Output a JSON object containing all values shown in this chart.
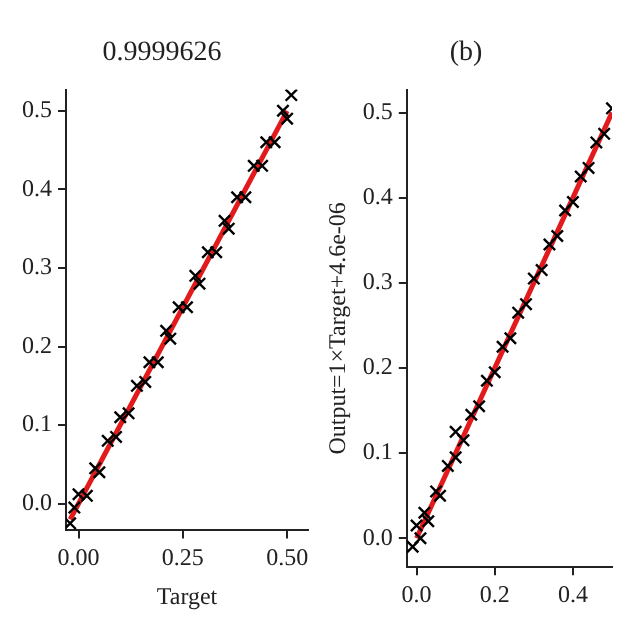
{
  "chart_data": [
    {
      "type": "scatter",
      "title": "0.9999626",
      "xlabel": "Target",
      "xlim": [
        -0.03,
        0.55
      ],
      "xticks": [
        {
          "value": 0,
          "label": "0.00"
        },
        {
          "value": 0.25,
          "label": "0.25"
        },
        {
          "value": 0.5,
          "label": "0.50"
        }
      ],
      "ylim": [
        -0.034,
        0.527
      ],
      "yticks": [
        {
          "value": 0,
          "label": "0.0"
        },
        {
          "value": 0.1,
          "label": "0.1"
        },
        {
          "value": 0.2,
          "label": "0.2"
        },
        {
          "value": 0.3,
          "label": "0.3"
        },
        {
          "value": 0.4,
          "label": "0.4"
        },
        {
          "value": 0.5,
          "label": "0.5"
        }
      ],
      "grid": false,
      "series": [
        {
          "color": "#000000",
          "marker": "cross",
          "x": [
            -0.02,
            -0.01,
            0.0,
            0.02,
            0.04,
            0.05,
            0.07,
            0.09,
            0.1,
            0.12,
            0.14,
            0.16,
            0.17,
            0.19,
            0.21,
            0.22,
            0.24,
            0.26,
            0.28,
            0.29,
            0.31,
            0.33,
            0.35,
            0.36,
            0.38,
            0.4,
            0.42,
            0.44,
            0.45,
            0.47,
            0.49,
            0.5,
            0.51
          ],
          "values": [
            -0.025,
            -0.005,
            0.012,
            0.01,
            0.045,
            0.04,
            0.08,
            0.085,
            0.11,
            0.115,
            0.15,
            0.155,
            0.18,
            0.18,
            0.22,
            0.21,
            0.25,
            0.25,
            0.29,
            0.28,
            0.32,
            0.32,
            0.36,
            0.35,
            0.39,
            0.39,
            0.43,
            0.43,
            0.46,
            0.46,
            0.5,
            0.49,
            0.52
          ]
        },
        {
          "type": "line",
          "color": "#e31a1c",
          "marker": "none",
          "x": [
            -0.02,
            0.5
          ],
          "values": [
            -0.02,
            0.5
          ]
        }
      ]
    },
    {
      "type": "scatter",
      "title": "(b)",
      "ylabel": "Output=1×Target+4.6e-06",
      "xlim": [
        -0.025,
        0.5
      ],
      "xticks": [
        {
          "value": 0,
          "label": "0.0"
        },
        {
          "value": 0.2,
          "label": "0.2"
        },
        {
          "value": 0.4,
          "label": "0.4"
        }
      ],
      "ylim": [
        -0.034,
        0.527
      ],
      "yticks": [
        {
          "value": 0,
          "label": "0.0"
        },
        {
          "value": 0.1,
          "label": "0.1"
        },
        {
          "value": 0.2,
          "label": "0.2"
        },
        {
          "value": 0.3,
          "label": "0.3"
        },
        {
          "value": 0.4,
          "label": "0.4"
        },
        {
          "value": 0.5,
          "label": "0.5"
        }
      ],
      "grid": false,
      "series": [
        {
          "color": "#000000",
          "marker": "cross",
          "x": [
            -0.01,
            0.0,
            0.01,
            0.02,
            0.03,
            0.05,
            0.06,
            0.08,
            0.1,
            0.1,
            0.12,
            0.14,
            0.16,
            0.18,
            0.2,
            0.22,
            0.24,
            0.26,
            0.28,
            0.3,
            0.32,
            0.34,
            0.36,
            0.38,
            0.4,
            0.42,
            0.44,
            0.46,
            0.48,
            0.5
          ],
          "values": [
            -0.01,
            0.015,
            0.0,
            0.03,
            0.02,
            0.055,
            0.05,
            0.085,
            0.095,
            0.125,
            0.115,
            0.145,
            0.155,
            0.185,
            0.195,
            0.225,
            0.235,
            0.265,
            0.275,
            0.305,
            0.315,
            0.345,
            0.355,
            0.385,
            0.395,
            0.425,
            0.435,
            0.465,
            0.475,
            0.505
          ]
        },
        {
          "type": "line",
          "color": "#e31a1c",
          "marker": "none",
          "x": [
            0.0,
            0.5
          ],
          "values": [
            0.0,
            0.5
          ]
        }
      ]
    }
  ]
}
